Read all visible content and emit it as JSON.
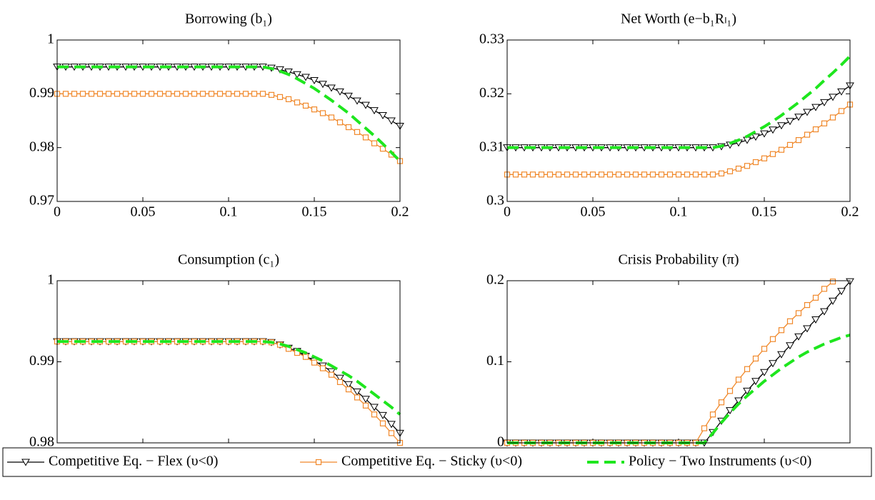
{
  "chart_data": [
    {
      "type": "line",
      "title": "Borrowing (b₁)",
      "x": [
        0,
        0.005,
        0.01,
        0.015,
        0.02,
        0.025,
        0.03,
        0.035,
        0.04,
        0.045,
        0.05,
        0.055,
        0.06,
        0.065,
        0.07,
        0.075,
        0.08,
        0.085,
        0.09,
        0.095,
        0.1,
        0.105,
        0.11,
        0.115,
        0.12,
        0.125,
        0.13,
        0.135,
        0.14,
        0.145,
        0.15,
        0.155,
        0.16,
        0.165,
        0.17,
        0.175,
        0.18,
        0.185,
        0.19,
        0.195,
        0.2
      ],
      "xlim": [
        0,
        0.2
      ],
      "xticks": [
        0,
        0.05,
        0.1,
        0.15,
        0.2
      ],
      "ylim": [
        0.97,
        1
      ],
      "yticks": [
        0.97,
        0.98,
        0.99,
        1
      ],
      "series": [
        {
          "name": "Competitive Eq. − Flex (υ<0)",
          "color": "#000000",
          "marker": "triangle",
          "dash": false,
          "values": [
            0.995,
            0.995,
            0.995,
            0.995,
            0.995,
            0.995,
            0.995,
            0.995,
            0.995,
            0.995,
            0.995,
            0.995,
            0.995,
            0.995,
            0.995,
            0.995,
            0.995,
            0.995,
            0.995,
            0.995,
            0.995,
            0.995,
            0.995,
            0.995,
            0.995,
            0.9948,
            0.9945,
            0.9941,
            0.9936,
            0.9931,
            0.9925,
            0.9918,
            0.9911,
            0.9904,
            0.9896,
            0.9887,
            0.9879,
            0.9869,
            0.986,
            0.985,
            0.984
          ]
        },
        {
          "name": "Competitive Eq. − Sticky (υ<0)",
          "color": "#f0882a",
          "marker": "square",
          "dash": false,
          "values": [
            0.99,
            0.99,
            0.99,
            0.99,
            0.99,
            0.99,
            0.99,
            0.99,
            0.99,
            0.99,
            0.99,
            0.99,
            0.99,
            0.99,
            0.99,
            0.99,
            0.99,
            0.99,
            0.99,
            0.99,
            0.99,
            0.99,
            0.99,
            0.99,
            0.99,
            0.9898,
            0.9894,
            0.989,
            0.9884,
            0.9878,
            0.9871,
            0.9864,
            0.9856,
            0.9847,
            0.9838,
            0.9829,
            0.9819,
            0.9808,
            0.9798,
            0.9787,
            0.9775
          ]
        },
        {
          "name": "Policy − Two Instruments (υ<0)",
          "color": "#1ee61e",
          "marker": "none",
          "dash": true,
          "values": [
            0.995,
            0.995,
            0.995,
            0.995,
            0.995,
            0.995,
            0.995,
            0.995,
            0.995,
            0.995,
            0.995,
            0.995,
            0.995,
            0.995,
            0.995,
            0.995,
            0.995,
            0.995,
            0.995,
            0.995,
            0.995,
            0.995,
            0.995,
            0.995,
            0.995,
            0.9947,
            0.9942,
            0.9936,
            0.9928,
            0.9919,
            0.991,
            0.9899,
            0.9888,
            0.9876,
            0.9864,
            0.985,
            0.9836,
            0.9822,
            0.9807,
            0.9791,
            0.9775
          ]
        }
      ]
    },
    {
      "type": "line",
      "title": "Net Worth (e−b₁Rₗ₁)",
      "x": [
        0,
        0.005,
        0.01,
        0.015,
        0.02,
        0.025,
        0.03,
        0.035,
        0.04,
        0.045,
        0.05,
        0.055,
        0.06,
        0.065,
        0.07,
        0.075,
        0.08,
        0.085,
        0.09,
        0.095,
        0.1,
        0.105,
        0.11,
        0.115,
        0.12,
        0.125,
        0.13,
        0.135,
        0.14,
        0.145,
        0.15,
        0.155,
        0.16,
        0.165,
        0.17,
        0.175,
        0.18,
        0.185,
        0.19,
        0.195,
        0.2
      ],
      "xlim": [
        0,
        0.2
      ],
      "xticks": [
        0,
        0.05,
        0.1,
        0.15,
        0.2
      ],
      "ylim": [
        0.3,
        0.33
      ],
      "yticks": [
        0.3,
        0.31,
        0.32,
        0.33
      ],
      "series": [
        {
          "color": "#000000",
          "marker": "triangle",
          "dash": false,
          "values": [
            0.31,
            0.31,
            0.31,
            0.31,
            0.31,
            0.31,
            0.31,
            0.31,
            0.31,
            0.31,
            0.31,
            0.31,
            0.31,
            0.31,
            0.31,
            0.31,
            0.31,
            0.31,
            0.31,
            0.31,
            0.31,
            0.31,
            0.31,
            0.31,
            0.31,
            0.3102,
            0.3105,
            0.3109,
            0.3114,
            0.312,
            0.3126,
            0.3133,
            0.3141,
            0.3149,
            0.3157,
            0.3166,
            0.3175,
            0.3184,
            0.3194,
            0.3204,
            0.3215
          ]
        },
        {
          "color": "#f0882a",
          "marker": "square",
          "dash": false,
          "values": [
            0.305,
            0.305,
            0.305,
            0.305,
            0.305,
            0.305,
            0.305,
            0.305,
            0.305,
            0.305,
            0.305,
            0.305,
            0.305,
            0.305,
            0.305,
            0.305,
            0.305,
            0.305,
            0.305,
            0.305,
            0.305,
            0.305,
            0.305,
            0.305,
            0.305,
            0.3052,
            0.3056,
            0.3061,
            0.3066,
            0.3073,
            0.308,
            0.3088,
            0.3096,
            0.3105,
            0.3114,
            0.3124,
            0.3134,
            0.3145,
            0.3156,
            0.3168,
            0.318
          ]
        },
        {
          "color": "#1ee61e",
          "marker": "none",
          "dash": true,
          "values": [
            0.31,
            0.31,
            0.31,
            0.31,
            0.31,
            0.31,
            0.31,
            0.31,
            0.31,
            0.31,
            0.31,
            0.31,
            0.31,
            0.31,
            0.31,
            0.31,
            0.31,
            0.31,
            0.31,
            0.31,
            0.31,
            0.31,
            0.31,
            0.31,
            0.31,
            0.3103,
            0.3108,
            0.3114,
            0.3121,
            0.313,
            0.3139,
            0.3149,
            0.316,
            0.3172,
            0.3184,
            0.3197,
            0.321,
            0.3225,
            0.3239,
            0.3254,
            0.327
          ]
        }
      ]
    },
    {
      "type": "line",
      "title": "Consumption (c₁)",
      "x": [
        0,
        0.005,
        0.01,
        0.015,
        0.02,
        0.025,
        0.03,
        0.035,
        0.04,
        0.045,
        0.05,
        0.055,
        0.06,
        0.065,
        0.07,
        0.075,
        0.08,
        0.085,
        0.09,
        0.095,
        0.1,
        0.105,
        0.11,
        0.115,
        0.12,
        0.125,
        0.13,
        0.135,
        0.14,
        0.145,
        0.15,
        0.155,
        0.16,
        0.165,
        0.17,
        0.175,
        0.18,
        0.185,
        0.19,
        0.195,
        0.2
      ],
      "xlim": [
        0,
        0.2
      ],
      "xticks": [
        0,
        0.05,
        0.1,
        0.15,
        0.2
      ],
      "ylim": [
        0.98,
        1
      ],
      "yticks": [
        0.98,
        0.99,
        1
      ],
      "series": [
        {
          "color": "#000000",
          "marker": "triangle",
          "dash": false,
          "values": [
            0.9925,
            0.9925,
            0.9925,
            0.9925,
            0.9925,
            0.9925,
            0.9925,
            0.9925,
            0.9925,
            0.9925,
            0.9925,
            0.9925,
            0.9925,
            0.9925,
            0.9925,
            0.9925,
            0.9925,
            0.9925,
            0.9925,
            0.9925,
            0.9925,
            0.9925,
            0.9925,
            0.9925,
            0.9925,
            0.9924,
            0.9921,
            0.9917,
            0.9913,
            0.9907,
            0.9901,
            0.9895,
            0.9888,
            0.988,
            0.9872,
            0.9863,
            0.9854,
            0.9844,
            0.9834,
            0.9823,
            0.9812
          ]
        },
        {
          "color": "#f0882a",
          "marker": "square",
          "dash": false,
          "values": [
            0.9925,
            0.9925,
            0.9925,
            0.9925,
            0.9925,
            0.9925,
            0.9925,
            0.9925,
            0.9925,
            0.9925,
            0.9925,
            0.9925,
            0.9925,
            0.9925,
            0.9925,
            0.9925,
            0.9925,
            0.9925,
            0.9925,
            0.9925,
            0.9925,
            0.9925,
            0.9925,
            0.9925,
            0.9925,
            0.9924,
            0.9921,
            0.9916,
            0.9911,
            0.9906,
            0.9899,
            0.9892,
            0.9884,
            0.9875,
            0.9866,
            0.9856,
            0.9846,
            0.9835,
            0.9824,
            0.9812,
            0.98
          ]
        },
        {
          "color": "#1ee61e",
          "marker": "none",
          "dash": true,
          "values": [
            0.9925,
            0.9925,
            0.9925,
            0.9925,
            0.9925,
            0.9925,
            0.9925,
            0.9925,
            0.9925,
            0.9925,
            0.9925,
            0.9925,
            0.9925,
            0.9925,
            0.9925,
            0.9925,
            0.9925,
            0.9925,
            0.9925,
            0.9925,
            0.9925,
            0.9925,
            0.9925,
            0.9925,
            0.9925,
            0.9924,
            0.9922,
            0.9919,
            0.9915,
            0.9911,
            0.9906,
            0.9901,
            0.9895,
            0.9889,
            0.9883,
            0.9876,
            0.9868,
            0.986,
            0.9852,
            0.9844,
            0.9835
          ]
        }
      ]
    },
    {
      "type": "line",
      "title": "Crisis Probability (π)",
      "x": [
        0,
        0.005,
        0.01,
        0.015,
        0.02,
        0.025,
        0.03,
        0.035,
        0.04,
        0.045,
        0.05,
        0.055,
        0.06,
        0.065,
        0.07,
        0.075,
        0.08,
        0.085,
        0.09,
        0.095,
        0.1,
        0.105,
        0.11,
        0.115,
        0.12,
        0.125,
        0.13,
        0.135,
        0.14,
        0.145,
        0.15,
        0.155,
        0.16,
        0.165,
        0.17,
        0.175,
        0.18,
        0.185,
        0.19,
        0.195,
        0.2
      ],
      "xlim": [
        0,
        0.2
      ],
      "xticks": [
        0,
        0.05,
        0.1,
        0.15,
        0.2
      ],
      "ylim": [
        0,
        0.2
      ],
      "yticks": [
        0,
        0.1,
        0.2
      ],
      "series": [
        {
          "color": "#000000",
          "marker": "triangle",
          "dash": false,
          "values": [
            0,
            0,
            0,
            0,
            0,
            0,
            0,
            0,
            0,
            0,
            0,
            0,
            0,
            0,
            0,
            0,
            0,
            0,
            0,
            0,
            0,
            0,
            0,
            0,
            0.013,
            0.027,
            0.04,
            0.052,
            0.064,
            0.076,
            0.087,
            0.098,
            0.109,
            0.12,
            0.131,
            0.141,
            0.152,
            0.162,
            0.175,
            0.187,
            0.199
          ]
        },
        {
          "color": "#f0882a",
          "marker": "square",
          "dash": false,
          "values": [
            0,
            0,
            0,
            0,
            0,
            0,
            0,
            0,
            0,
            0,
            0,
            0,
            0,
            0,
            0,
            0,
            0,
            0,
            0,
            0,
            0,
            0,
            0,
            0.018,
            0.035,
            0.05,
            0.064,
            0.078,
            0.091,
            0.104,
            0.116,
            0.128,
            0.139,
            0.15,
            0.16,
            0.17,
            0.179,
            0.19,
            0.199,
            null,
            null
          ]
        },
        {
          "color": "#1ee61e",
          "marker": "none",
          "dash": true,
          "values": [
            0,
            0,
            0,
            0,
            0,
            0,
            0,
            0,
            0,
            0,
            0,
            0,
            0,
            0,
            0,
            0,
            0,
            0,
            0,
            0,
            0,
            0,
            0,
            0,
            0.012,
            0.025,
            0.037,
            0.048,
            0.058,
            0.067,
            0.076,
            0.084,
            0.092,
            0.099,
            0.106,
            0.112,
            0.117,
            0.122,
            0.126,
            0.13,
            0.133
          ]
        }
      ]
    }
  ]
}
